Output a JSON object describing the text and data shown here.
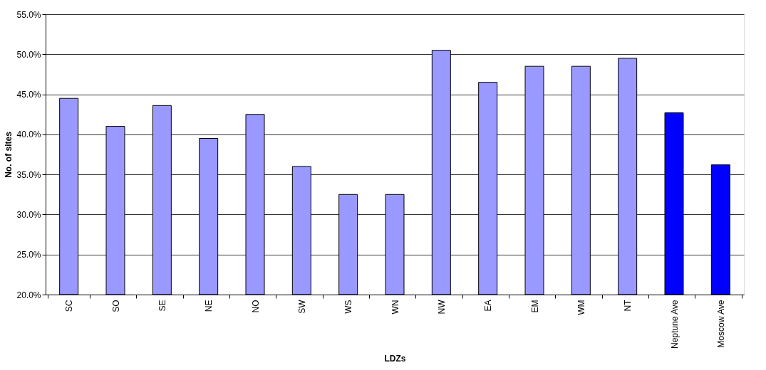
{
  "chart_data": {
    "type": "bar",
    "xlabel": "LDZs",
    "ylabel": "No. of sites",
    "categories": [
      "SC",
      "SO",
      "SE",
      "NE",
      "NO",
      "SW",
      "WS",
      "WN",
      "NW",
      "EA",
      "EM",
      "WM",
      "NT",
      "Neptune Ave",
      "Moscow Ave"
    ],
    "values": [
      44.5,
      41.0,
      43.6,
      39.5,
      42.5,
      36.0,
      32.5,
      32.5,
      50.5,
      46.5,
      48.5,
      48.5,
      49.5,
      42.7,
      36.2
    ],
    "colors": [
      "#9999ff",
      "#9999ff",
      "#9999ff",
      "#9999ff",
      "#9999ff",
      "#9999ff",
      "#9999ff",
      "#9999ff",
      "#9999ff",
      "#9999ff",
      "#9999ff",
      "#9999ff",
      "#9999ff",
      "#0000ff",
      "#0000ff"
    ],
    "ylim": [
      20,
      55
    ],
    "yticks": [
      {
        "value": 20,
        "label": "20.0%"
      },
      {
        "value": 25,
        "label": "25.0%"
      },
      {
        "value": 30,
        "label": "30.0%"
      },
      {
        "value": 35,
        "label": "35.0%"
      },
      {
        "value": 40,
        "label": "40.0%"
      },
      {
        "value": 45,
        "label": "45.0%"
      },
      {
        "value": 50,
        "label": "50.0%"
      },
      {
        "value": 55,
        "label": "55.0%"
      }
    ],
    "grid": "y"
  }
}
